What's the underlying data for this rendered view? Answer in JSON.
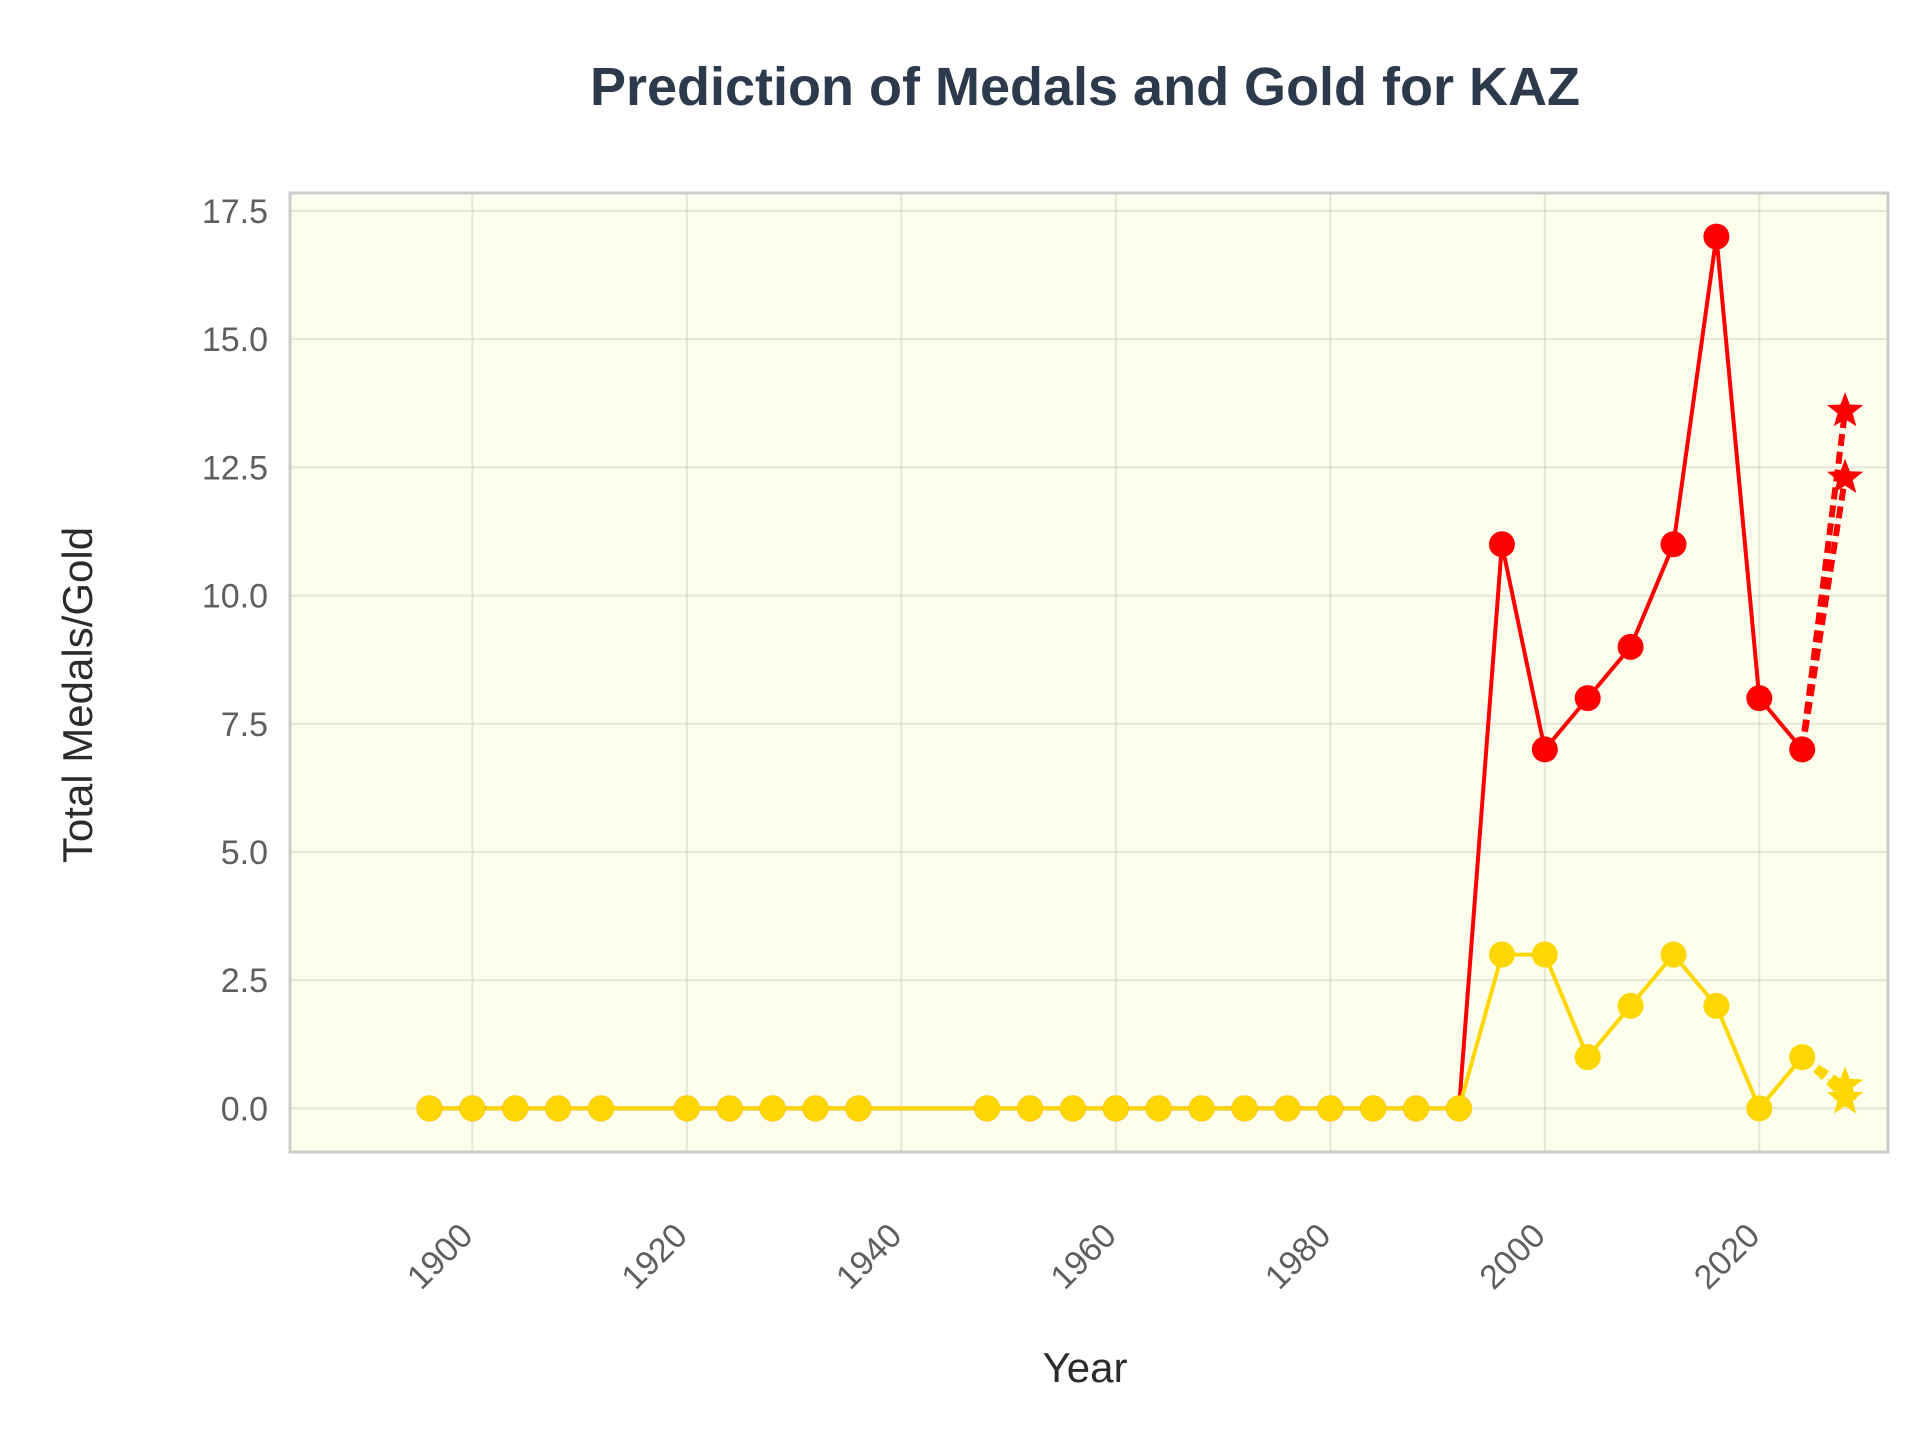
{
  "chart_data": {
    "type": "line",
    "title": "Prediction of Medals and Gold for KAZ",
    "xlabel": "Year",
    "ylabel": "Total Medals/Gold",
    "xlim": [
      1883,
      2032
    ],
    "ylim": [
      -0.85,
      17.85
    ],
    "xticks": [
      1900,
      1920,
      1940,
      1960,
      1980,
      2000,
      2020
    ],
    "yticks": [
      "0.0",
      "2.5",
      "5.0",
      "7.5",
      "10.0",
      "12.5",
      "15.0",
      "17.5"
    ],
    "grid": true,
    "background": "#fdfeec",
    "series": [
      {
        "color": "#ff0000",
        "x": [
          1896,
          1900,
          1904,
          1908,
          1912,
          1920,
          1924,
          1928,
          1932,
          1936,
          1948,
          1952,
          1956,
          1960,
          1964,
          1968,
          1972,
          1976,
          1980,
          1984,
          1988,
          1992,
          1996,
          2000,
          2004,
          2008,
          2012,
          2016,
          2020,
          2024
        ],
        "values": [
          0,
          0,
          0,
          0,
          0,
          0,
          0,
          0,
          0,
          0,
          0,
          0,
          0,
          0,
          0,
          0,
          0,
          0,
          0,
          0,
          0,
          0,
          11,
          7,
          8,
          9,
          11,
          17,
          8,
          7
        ]
      },
      {
        "color": "#ffd700",
        "x": [
          1896,
          1900,
          1904,
          1908,
          1912,
          1920,
          1924,
          1928,
          1932,
          1936,
          1948,
          1952,
          1956,
          1960,
          1964,
          1968,
          1972,
          1976,
          1980,
          1984,
          1988,
          1992,
          1996,
          2000,
          2004,
          2008,
          2012,
          2016,
          2020,
          2024
        ],
        "values": [
          0,
          0,
          0,
          0,
          0,
          0,
          0,
          0,
          0,
          0,
          0,
          0,
          0,
          0,
          0,
          0,
          0,
          0,
          0,
          0,
          0,
          0,
          3,
          3,
          1,
          2,
          3,
          2,
          0,
          1
        ]
      }
    ],
    "predictions": [
      {
        "color": "#ff0000",
        "from": [
          2024,
          7
        ],
        "x": 2028,
        "values": [
          12.3,
          13.6
        ]
      },
      {
        "color": "#ffd700",
        "from": [
          2024,
          1
        ],
        "x": 2028,
        "values": [
          0.2,
          0.45
        ]
      }
    ]
  }
}
